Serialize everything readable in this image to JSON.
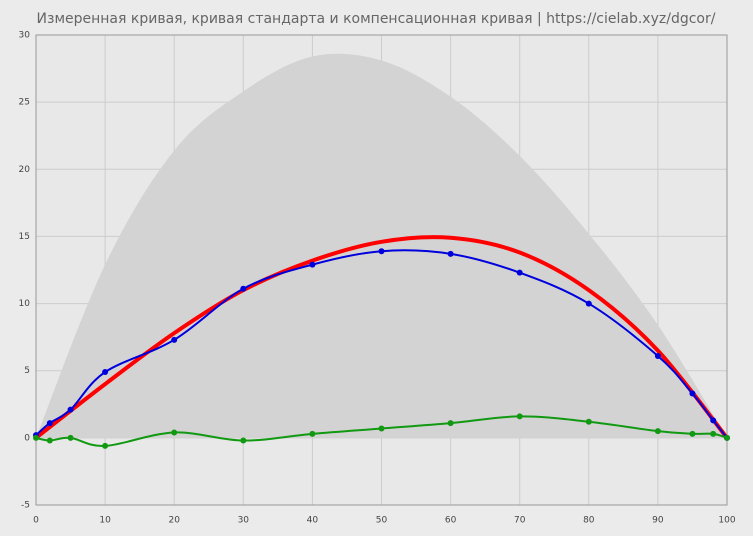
{
  "chart_data": {
    "type": "line",
    "title": "Измеренная кривая, кривая стандарта и компенсационная кривая | https://cielab.xyz/dgcor/",
    "xlim": [
      0,
      100
    ],
    "xticks": [
      0,
      10,
      20,
      30,
      40,
      50,
      60,
      70,
      80,
      90,
      100
    ],
    "ylim": [
      -5,
      30
    ],
    "yticks": [
      -5,
      0,
      5,
      10,
      15,
      20,
      25,
      30
    ],
    "grid": true,
    "series": [
      {
        "type": "area",
        "color": "#d3d3d3",
        "x": [
          0,
          10,
          20,
          30,
          40,
          50,
          60,
          70,
          80,
          90,
          100
        ],
        "values": [
          0,
          12.9,
          21.4,
          25.8,
          28.4,
          28.1,
          25.4,
          21,
          15.2,
          8.4,
          0
        ]
      },
      {
        "type": "line",
        "color": "#ff0000",
        "width": 4,
        "x": [
          0,
          10,
          20,
          30,
          40,
          50,
          60,
          70,
          80,
          90,
          100
        ],
        "values": [
          0,
          4,
          7.8,
          11,
          13.2,
          14.6,
          14.9,
          13.8,
          11,
          6.5,
          0
        ]
      },
      {
        "type": "line",
        "color": "#0000dd",
        "width": 2,
        "markers": true,
        "x": [
          0,
          2,
          5,
          10,
          20,
          30,
          40,
          50,
          60,
          70,
          80,
          90,
          95,
          98,
          100
        ],
        "values": [
          0.2,
          1.1,
          2.1,
          4.9,
          7.3,
          11.1,
          12.9,
          13.9,
          13.7,
          12.3,
          10,
          6.1,
          3.3,
          1.3,
          0
        ]
      },
      {
        "type": "line",
        "color": "#119911",
        "width": 2,
        "markers": true,
        "x": [
          0,
          2,
          5,
          10,
          20,
          30,
          40,
          50,
          60,
          70,
          80,
          90,
          95,
          98,
          100
        ],
        "values": [
          0,
          -0.2,
          0,
          -0.6,
          0.4,
          -0.2,
          0.3,
          0.7,
          1.1,
          1.6,
          1.2,
          0.5,
          0.3,
          0.3,
          0
        ]
      }
    ]
  }
}
